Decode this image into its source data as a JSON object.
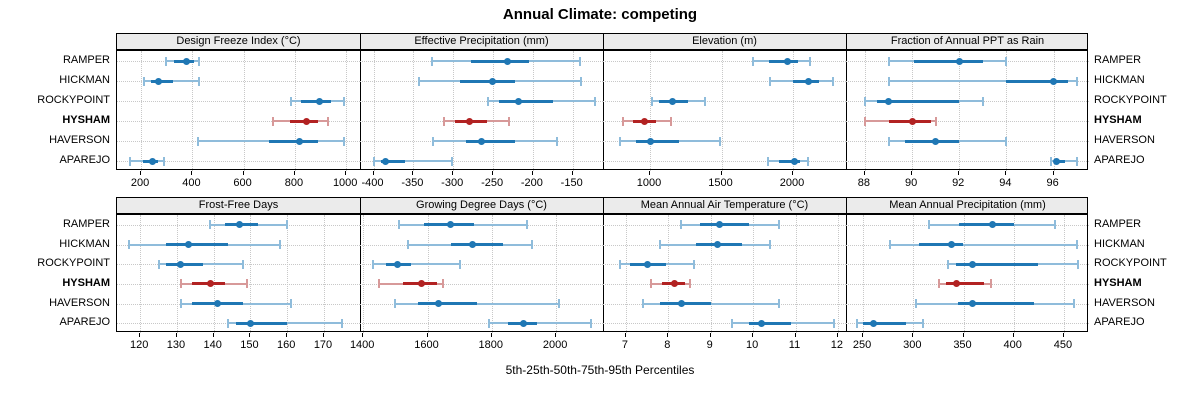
{
  "title": "Annual Climate: competing",
  "caption": "5th-25th-50th-75th-95th Percentiles",
  "sites": [
    "RAMPER",
    "HICKMAN",
    "ROCKYPOINT",
    "HYSHAM",
    "HAVERSON",
    "APAREJO"
  ],
  "highlight_site": "HYSHAM",
  "percentiles": [
    5,
    25,
    50,
    75,
    95
  ],
  "colors": {
    "blue": "#1f77b4",
    "blue_light": "#8fbcdb",
    "red": "#b22222",
    "red_light": "#d79999",
    "strip_bg": "#ebebeb",
    "grid": "#c8c8c8",
    "border": "#000000"
  },
  "chart_data": [
    {
      "type": "dot-whisker",
      "title": "Design Freeze Index (°C)",
      "row": 0,
      "col": 0,
      "xlim": [
        106,
        1054
      ],
      "ticks": [
        200,
        400,
        600,
        800,
        1000
      ],
      "series": [
        {
          "site": "RAMPER",
          "values": [
            297,
            329,
            376,
            407,
            427
          ]
        },
        {
          "site": "HICKMAN",
          "values": [
            212,
            240,
            266,
            325,
            426
          ]
        },
        {
          "site": "ROCKYPOINT",
          "values": [
            785,
            825,
            895,
            940,
            990
          ]
        },
        {
          "site": "HYSHAM",
          "values": [
            714,
            781,
            845,
            890,
            930
          ]
        },
        {
          "site": "HAVERSON",
          "values": [
            422,
            700,
            816,
            890,
            992
          ]
        },
        {
          "site": "APAREJO",
          "values": [
            157,
            208,
            243,
            266,
            290
          ]
        }
      ]
    },
    {
      "type": "dot-whisker",
      "title": "Effective Precipitation (mm)",
      "row": 0,
      "col": 1,
      "xlim": [
        -417,
        -112
      ],
      "ticks": [
        -400,
        -350,
        -300,
        -250,
        -200,
        -150
      ],
      "series": [
        {
          "site": "RAMPER",
          "values": [
            -327,
            -278,
            -232,
            -205,
            -141
          ]
        },
        {
          "site": "HICKMAN",
          "values": [
            -343,
            -291,
            -251,
            -222,
            -140
          ]
        },
        {
          "site": "ROCKYPOINT",
          "values": [
            -256,
            -243,
            -218,
            -175,
            -122
          ]
        },
        {
          "site": "HYSHAM",
          "values": [
            -312,
            -298,
            -279,
            -257,
            -230
          ]
        },
        {
          "site": "HAVERSON",
          "values": [
            -326,
            -284,
            -264,
            -222,
            -170
          ]
        },
        {
          "site": "APAREJO",
          "values": [
            -399,
            -391,
            -385,
            -360,
            -301
          ]
        }
      ]
    },
    {
      "type": "dot-whisker",
      "title": "Elevation (m)",
      "row": 0,
      "col": 2,
      "xlim": [
        671,
        2371
      ],
      "ticks": [
        1000,
        1500,
        2000
      ],
      "series": [
        {
          "site": "RAMPER",
          "values": [
            1720,
            1835,
            1960,
            2035,
            2120
          ]
        },
        {
          "site": "HICKMAN",
          "values": [
            1840,
            2000,
            2110,
            2185,
            2280
          ]
        },
        {
          "site": "ROCKYPOINT",
          "values": [
            1015,
            1065,
            1160,
            1265,
            1385
          ]
        },
        {
          "site": "HYSHAM",
          "values": [
            810,
            880,
            960,
            1040,
            1145
          ]
        },
        {
          "site": "HAVERSON",
          "values": [
            790,
            900,
            1000,
            1200,
            1490
          ]
        },
        {
          "site": "APAREJO",
          "values": [
            1825,
            1900,
            2010,
            2050,
            2105
          ]
        }
      ]
    },
    {
      "type": "dot-whisker",
      "title": "Fraction of Annual PPT as Rain",
      "row": 0,
      "col": 3,
      "xlim": [
        87.2,
        97.5
      ],
      "ticks": [
        88,
        90,
        92,
        94,
        96
      ],
      "series": [
        {
          "site": "RAMPER",
          "values": [
            89,
            90.1,
            92,
            93,
            94
          ]
        },
        {
          "site": "HICKMAN",
          "values": [
            89,
            94,
            96,
            96.6,
            97
          ]
        },
        {
          "site": "ROCKYPOINT",
          "values": [
            88,
            88.5,
            89,
            92,
            93
          ]
        },
        {
          "site": "HYSHAM",
          "values": [
            88,
            89,
            90,
            90.8,
            91
          ]
        },
        {
          "site": "HAVERSON",
          "values": [
            89,
            89.7,
            91,
            92,
            94
          ]
        },
        {
          "site": "APAREJO",
          "values": [
            95.9,
            96,
            96.1,
            96.5,
            97
          ]
        }
      ]
    },
    {
      "type": "dot-whisker",
      "title": "Frost-Free Days",
      "row": 1,
      "col": 0,
      "xlim": [
        113.7,
        179.8
      ],
      "ticks": [
        120,
        130,
        140,
        150,
        160,
        170
      ],
      "series": [
        {
          "site": "RAMPER",
          "values": [
            139,
            143,
            147,
            152,
            160
          ]
        },
        {
          "site": "HICKMAN",
          "values": [
            117,
            127,
            133,
            144,
            158
          ]
        },
        {
          "site": "ROCKYPOINT",
          "values": [
            125,
            127,
            131,
            137,
            148
          ]
        },
        {
          "site": "HYSHAM",
          "values": [
            131,
            134,
            139,
            143,
            149
          ]
        },
        {
          "site": "HAVERSON",
          "values": [
            131,
            134,
            141,
            148,
            161
          ]
        },
        {
          "site": "APAREJO",
          "values": [
            144,
            146,
            150,
            160,
            175
          ]
        }
      ]
    },
    {
      "type": "dot-whisker",
      "title": "Growing Degree Days (°C)",
      "row": 1,
      "col": 1,
      "xlim": [
        1390,
        2146
      ],
      "ticks": [
        1400,
        1600,
        1800,
        2000
      ],
      "series": [
        {
          "site": "RAMPER",
          "values": [
            1510,
            1590,
            1670,
            1745,
            1910
          ]
        },
        {
          "site": "HICKMAN",
          "values": [
            1540,
            1673,
            1740,
            1835,
            1925
          ]
        },
        {
          "site": "ROCKYPOINT",
          "values": [
            1430,
            1470,
            1505,
            1550,
            1700
          ]
        },
        {
          "site": "HYSHAM",
          "values": [
            1450,
            1525,
            1580,
            1630,
            1648
          ]
        },
        {
          "site": "HAVERSON",
          "values": [
            1500,
            1570,
            1635,
            1755,
            2010
          ]
        },
        {
          "site": "APAREJO",
          "values": [
            1790,
            1850,
            1900,
            1940,
            2110
          ]
        }
      ]
    },
    {
      "type": "dot-whisker",
      "title": "Mean Annual Air Temperature (°C)",
      "row": 1,
      "col": 2,
      "xlim": [
        6.46,
        12.19
      ],
      "ticks": [
        7,
        8,
        9,
        10,
        11,
        12
      ],
      "series": [
        {
          "site": "RAMPER",
          "values": [
            8.3,
            8.75,
            9.2,
            9.9,
            10.6
          ]
        },
        {
          "site": "HICKMAN",
          "values": [
            7.8,
            8.65,
            9.15,
            9.75,
            10.4
          ]
        },
        {
          "site": "ROCKYPOINT",
          "values": [
            6.85,
            7.1,
            7.5,
            7.95,
            8.6
          ]
        },
        {
          "site": "HYSHAM",
          "values": [
            7.6,
            7.85,
            8.15,
            8.4,
            8.5
          ]
        },
        {
          "site": "HAVERSON",
          "values": [
            7.4,
            7.8,
            8.3,
            9.0,
            10.6
          ]
        },
        {
          "site": "APAREJO",
          "values": [
            9.5,
            9.9,
            10.2,
            10.9,
            11.9
          ]
        }
      ]
    },
    {
      "type": "dot-whisker",
      "title": "Mean Annual Precipitation (mm)",
      "row": 1,
      "col": 3,
      "xlim": [
        233,
        475
      ],
      "ticks": [
        250,
        300,
        350,
        400,
        450
      ],
      "series": [
        {
          "site": "RAMPER",
          "values": [
            316,
            345,
            379,
            400,
            441
          ]
        },
        {
          "site": "HICKMAN",
          "values": [
            277,
            306,
            338,
            350,
            463
          ]
        },
        {
          "site": "ROCKYPOINT",
          "values": [
            335,
            342,
            359,
            424,
            464
          ]
        },
        {
          "site": "HYSHAM",
          "values": [
            326,
            333,
            343,
            370,
            377
          ]
        },
        {
          "site": "HAVERSON",
          "values": [
            303,
            344,
            359,
            420,
            460
          ]
        },
        {
          "site": "APAREJO",
          "values": [
            244,
            250,
            260,
            293,
            310
          ]
        }
      ]
    }
  ]
}
